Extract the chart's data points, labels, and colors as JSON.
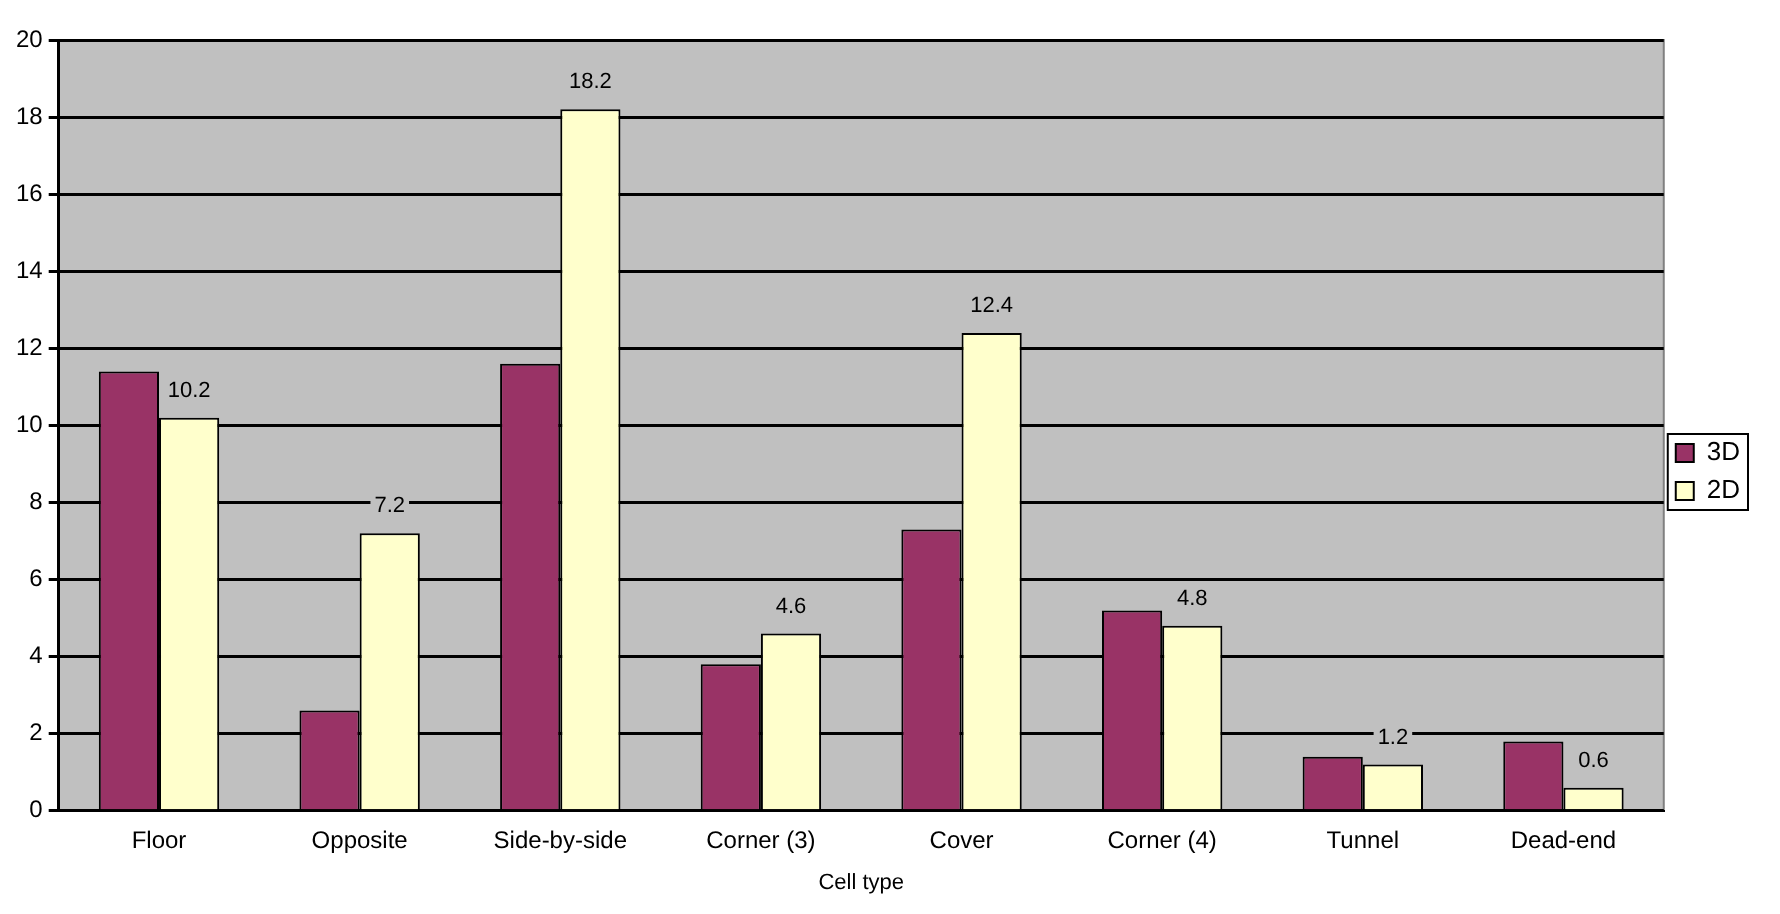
{
  "chart_data": {
    "type": "bar",
    "xlabel": "Cell type",
    "categories": [
      "Floor",
      "Opposite",
      "Side-by-side",
      "Corner (3)",
      "Cover",
      "Corner (4)",
      "Tunnel",
      "Dead-end"
    ],
    "series": [
      {
        "name": "3D",
        "color": "#993366",
        "values": [
          11.4,
          2.6,
          11.6,
          3.8,
          7.3,
          5.2,
          1.4,
          1.8
        ]
      },
      {
        "name": "2D",
        "color": "#ffffcc",
        "values": [
          10.2,
          7.2,
          18.2,
          4.6,
          12.4,
          4.8,
          1.2,
          0.6
        ],
        "value_labels": [
          "10.2",
          "7.2",
          "18.2",
          "4.6",
          "12.4",
          "4.8",
          "1.2",
          "0.6"
        ]
      }
    ],
    "ylim": [
      0,
      20
    ],
    "yticks": [
      0,
      2,
      4,
      6,
      8,
      10,
      12,
      14,
      16,
      18,
      20
    ],
    "grid": "y",
    "legend": "right"
  }
}
